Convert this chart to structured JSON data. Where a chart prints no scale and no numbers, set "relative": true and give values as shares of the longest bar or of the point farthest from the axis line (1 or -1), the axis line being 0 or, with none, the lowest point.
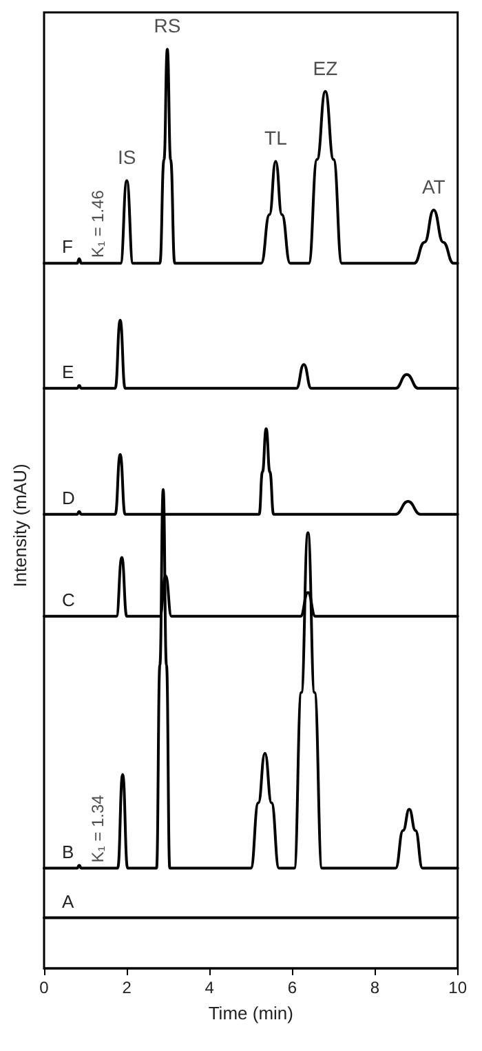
{
  "chart_data": {
    "type": "line",
    "relative": true,
    "xlabel": "Time (min)",
    "ylabel": "Intensity (mAU)",
    "xlim": [
      0,
      10
    ],
    "xticks": [
      0,
      2,
      4,
      6,
      8,
      10
    ],
    "grid": false,
    "legend": false,
    "marker": "none",
    "line_style": "solid",
    "series": [
      {
        "name": "F",
        "color": "#000000",
        "x": [
          0,
          0.8,
          0.85,
          0.9,
          1.85,
          2.0,
          2.15,
          2.8,
          2.9,
          2.98,
          3.06,
          3.16,
          5.25,
          5.45,
          5.6,
          5.75,
          5.95,
          6.4,
          6.6,
          6.8,
          7.0,
          7.2,
          8.95,
          9.2,
          9.42,
          9.65,
          9.9,
          10
        ],
        "values": [
          0.767,
          0.767,
          0.772,
          0.767,
          0.767,
          0.857,
          0.767,
          0.767,
          0.88,
          1.0,
          0.88,
          0.767,
          0.767,
          0.82,
          0.878,
          0.82,
          0.767,
          0.767,
          0.88,
          0.954,
          0.88,
          0.767,
          0.767,
          0.79,
          0.825,
          0.79,
          0.767,
          0.767
        ]
      },
      {
        "name": "E",
        "color": "#000000",
        "x": [
          0,
          0.8,
          0.85,
          0.9,
          1.72,
          1.84,
          1.96,
          6.1,
          6.28,
          6.46,
          8.5,
          8.77,
          9.05,
          10
        ],
        "values": [
          0.631,
          0.631,
          0.634,
          0.631,
          0.631,
          0.705,
          0.631,
          0.631,
          0.657,
          0.631,
          0.631,
          0.646,
          0.631,
          0.631
        ]
      },
      {
        "name": "D",
        "color": "#000000",
        "x": [
          0,
          0.8,
          0.85,
          0.9,
          1.72,
          1.84,
          1.96,
          5.2,
          5.28,
          5.37,
          5.46,
          5.55,
          8.5,
          8.8,
          9.1,
          10
        ],
        "values": [
          0.494,
          0.494,
          0.497,
          0.494,
          0.494,
          0.559,
          0.494,
          0.494,
          0.54,
          0.587,
          0.54,
          0.494,
          0.494,
          0.508,
          0.494,
          0.494
        ]
      },
      {
        "name": "C",
        "color": "#000000",
        "x": [
          0,
          1.75,
          1.88,
          2.0,
          2.8,
          2.94,
          3.08,
          6.2,
          6.38,
          6.56,
          10
        ],
        "values": [
          0.383,
          0.383,
          0.447,
          0.383,
          0.383,
          0.427,
          0.383,
          0.383,
          0.409,
          0.383,
          0.383
        ]
      },
      {
        "name": "B",
        "color": "#000000",
        "x": [
          0,
          0.8,
          0.85,
          0.9,
          1.78,
          1.9,
          2.02,
          2.72,
          2.8,
          2.88,
          2.96,
          3.04,
          5.0,
          5.18,
          5.34,
          5.5,
          5.68,
          6.05,
          6.22,
          6.38,
          6.54,
          6.72,
          8.5,
          8.68,
          8.83,
          8.98,
          9.15,
          10
        ],
        "values": [
          0.109,
          0.109,
          0.112,
          0.109,
          0.109,
          0.211,
          0.109,
          0.109,
          0.33,
          0.521,
          0.33,
          0.109,
          0.109,
          0.18,
          0.234,
          0.18,
          0.109,
          0.109,
          0.3,
          0.474,
          0.3,
          0.109,
          0.109,
          0.15,
          0.173,
          0.15,
          0.109,
          0.109
        ]
      },
      {
        "name": "A",
        "color": "#000000",
        "x": [
          0,
          10
        ],
        "values": [
          0.055,
          0.055
        ]
      }
    ],
    "annotations": [
      {
        "text": "IS",
        "x": 2.0,
        "y": 0.857
      },
      {
        "text": "RS",
        "x": 2.98,
        "y": 1.0
      },
      {
        "text": "TL",
        "x": 5.6,
        "y": 0.878
      },
      {
        "text": "EZ",
        "x": 6.8,
        "y": 0.954
      },
      {
        "text": "AT",
        "x": 9.42,
        "y": 0.825
      },
      "K₁ = 1.46",
      "K₁ = 1.34"
    ]
  }
}
